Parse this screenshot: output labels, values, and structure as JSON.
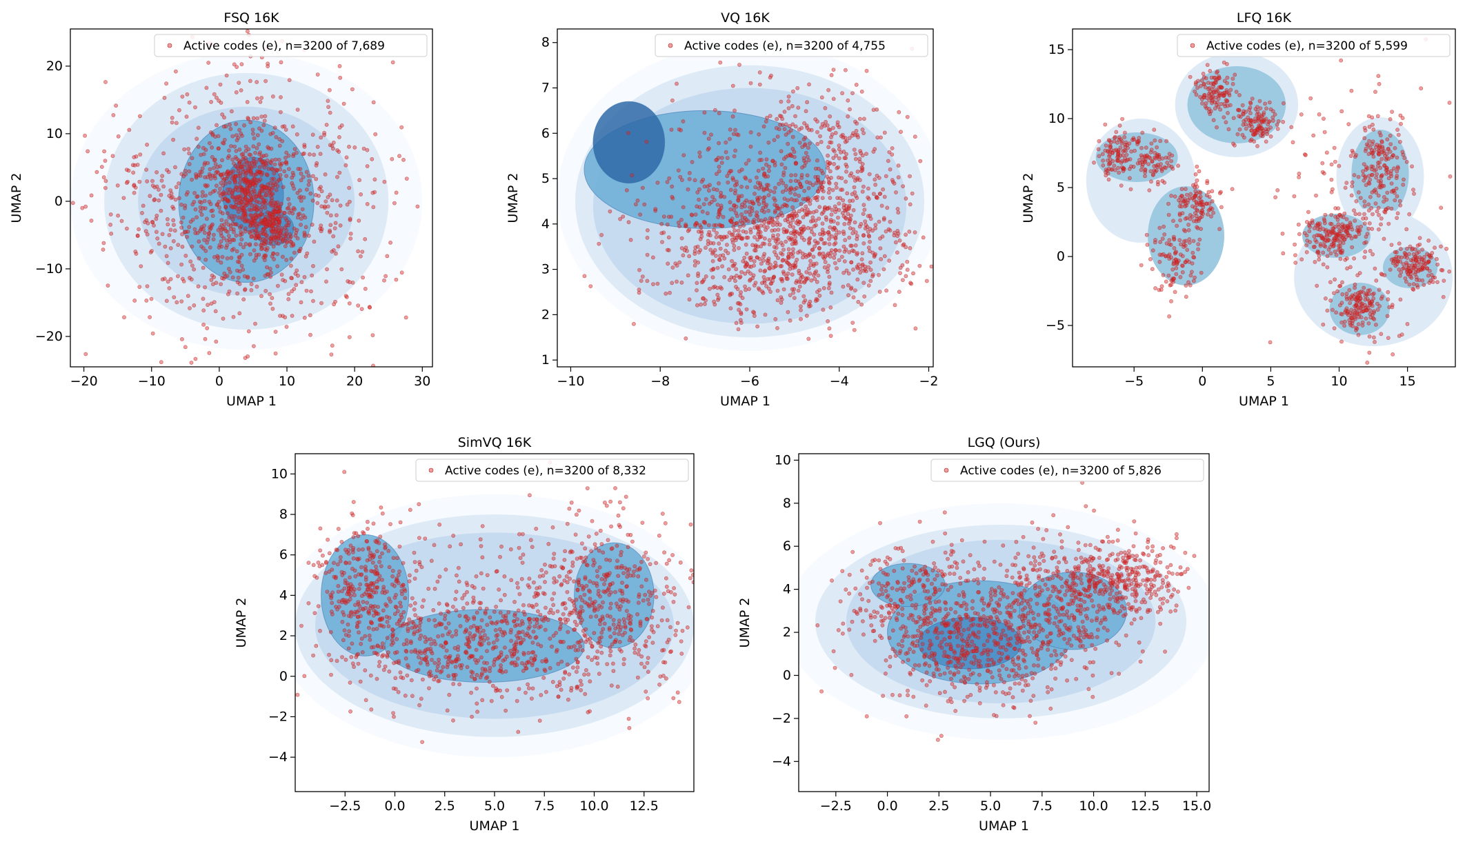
{
  "figure": {
    "description_free": true
  },
  "colors": {
    "point_fill": "#d62728",
    "point_edge": "#b71c1c",
    "kde_levels": [
      "#f7fbff",
      "#deebf7",
      "#c6dbef",
      "#9ecae1",
      "#6baed6",
      "#4a8cc4",
      "#2f6aa8"
    ],
    "axis": "#000000",
    "legend_border": "#cccccc"
  },
  "chart_data": [
    {
      "id": "fsq",
      "type": "scatter",
      "title": "FSQ 16K",
      "xlabel": "UMAP 1",
      "ylabel": "UMAP 2",
      "xlim": [
        -22,
        31.5
      ],
      "ylim": [
        -24.5,
        25.5
      ],
      "xticks": [
        -20,
        -10,
        0,
        10,
        20,
        30
      ],
      "yticks": [
        -20,
        -10,
        0,
        10,
        20
      ],
      "xtick_labels": [
        "−20",
        "−10",
        "0",
        "10",
        "20",
        "30"
      ],
      "ytick_labels": [
        "−20",
        "−10",
        "0",
        "10",
        "20"
      ],
      "legend": "Active codes (e), n=3200 of 7,689",
      "n_points": 3200,
      "active_codes": 7689,
      "point_density": [
        {
          "x": 4.5,
          "y": 1.5,
          "sx": 2.5,
          "sy": 3.0,
          "w": 0.18
        },
        {
          "x": 8.0,
          "y": -4.0,
          "sx": 2.0,
          "sy": 1.8,
          "w": 0.1
        },
        {
          "x": 4.0,
          "y": 0.0,
          "sx": 8.0,
          "sy": 8.0,
          "w": 0.4
        },
        {
          "x": 4.0,
          "y": 0.0,
          "sx": 12.0,
          "sy": 11.0,
          "w": 0.32
        }
      ],
      "kde_regions": [
        {
          "x": 4.0,
          "y": 0.0,
          "rx": 26,
          "ry": 22,
          "level": 0
        },
        {
          "x": 4.0,
          "y": 0.0,
          "rx": 21,
          "ry": 19,
          "level": 1
        },
        {
          "x": 4.0,
          "y": 0.0,
          "rx": 16,
          "ry": 14,
          "level": 2
        },
        {
          "x": 4.0,
          "y": 0.0,
          "rx": 10,
          "ry": 12,
          "level": 4
        },
        {
          "x": 5.0,
          "y": 1.0,
          "rx": 4.5,
          "ry": 5.5,
          "level": 5
        },
        {
          "x": 8.0,
          "y": -4.0,
          "rx": 3.0,
          "ry": 2.5,
          "level": 5
        }
      ]
    },
    {
      "id": "vq",
      "type": "scatter",
      "title": "VQ 16K",
      "xlabel": "UMAP 1",
      "ylabel": "UMAP 2",
      "xlim": [
        -10.3,
        -1.9
      ],
      "ylim": [
        0.85,
        8.3
      ],
      "xticks": [
        -10,
        -8,
        -6,
        -4,
        -2
      ],
      "yticks": [
        1,
        2,
        3,
        4,
        5,
        6,
        7,
        8
      ],
      "xtick_labels": [
        "−10",
        "−8",
        "−6",
        "−4",
        "−2"
      ],
      "ytick_labels": [
        "1",
        "2",
        "3",
        "4",
        "5",
        "6",
        "7",
        "8"
      ],
      "legend": "Active codes (e), n=3200 of 4,755",
      "n_points": 3200,
      "active_codes": 4755,
      "point_density": [
        {
          "x": -5.0,
          "y": 3.5,
          "sx": 1.3,
          "sy": 0.8,
          "w": 0.45
        },
        {
          "x": -4.5,
          "y": 5.0,
          "sx": 1.0,
          "sy": 1.1,
          "w": 0.3
        },
        {
          "x": -6.5,
          "y": 4.2,
          "sx": 1.1,
          "sy": 1.0,
          "w": 0.25
        }
      ],
      "kde_regions": [
        {
          "x": -6.0,
          "y": 4.6,
          "rx": 4.3,
          "ry": 3.4,
          "level": 0
        },
        {
          "x": -6.0,
          "y": 4.5,
          "rx": 3.9,
          "ry": 3.0,
          "level": 1
        },
        {
          "x": -6.0,
          "y": 4.4,
          "rx": 3.5,
          "ry": 2.6,
          "level": 2
        },
        {
          "x": -7.0,
          "y": 5.2,
          "rx": 2.7,
          "ry": 1.3,
          "level": 4
        },
        {
          "x": -8.7,
          "y": 5.8,
          "rx": 0.8,
          "ry": 0.9,
          "level": 6
        }
      ]
    },
    {
      "id": "lfq",
      "type": "scatter",
      "title": "LFQ 16K",
      "xlabel": "UMAP 1",
      "ylabel": "UMAP 2",
      "xlim": [
        -9.5,
        18.5
      ],
      "ylim": [
        -8.0,
        16.5
      ],
      "xticks": [
        -5,
        0,
        5,
        10,
        15
      ],
      "yticks": [
        -5,
        0,
        5,
        10,
        15
      ],
      "xtick_labels": [
        "−5",
        "0",
        "5",
        "10",
        "15"
      ],
      "ytick_labels": [
        "−5",
        "0",
        "5",
        "10",
        "15"
      ],
      "legend": "Active codes (e), n=3200 of 5,599",
      "n_points": 3200,
      "active_codes": 5599,
      "point_density": [
        {
          "x": 1.0,
          "y": 12.0,
          "sx": 0.9,
          "sy": 0.9,
          "w": 0.09
        },
        {
          "x": 4.0,
          "y": 9.7,
          "sx": 0.9,
          "sy": 0.7,
          "w": 0.09
        },
        {
          "x": -6.0,
          "y": 7.5,
          "sx": 0.8,
          "sy": 1.0,
          "w": 0.08
        },
        {
          "x": -3.5,
          "y": 6.8,
          "sx": 0.7,
          "sy": 0.8,
          "w": 0.06
        },
        {
          "x": -0.5,
          "y": 3.8,
          "sx": 0.9,
          "sy": 0.9,
          "w": 0.07
        },
        {
          "x": -2.0,
          "y": 0.0,
          "sx": 0.9,
          "sy": 1.2,
          "w": 0.08
        },
        {
          "x": 13.0,
          "y": 6.5,
          "sx": 0.9,
          "sy": 1.8,
          "w": 0.09
        },
        {
          "x": 9.5,
          "y": 1.5,
          "sx": 1.0,
          "sy": 0.8,
          "w": 0.11
        },
        {
          "x": 15.5,
          "y": -0.8,
          "sx": 1.0,
          "sy": 0.8,
          "w": 0.1
        },
        {
          "x": 11.5,
          "y": -3.8,
          "sx": 0.9,
          "sy": 1.0,
          "w": 0.1
        },
        {
          "x": 12.0,
          "y": 3.0,
          "sx": 3.0,
          "sy": 5.0,
          "w": 0.13
        }
      ],
      "kde_regions": [
        {
          "x": 2.5,
          "y": 11.0,
          "rx": 4.5,
          "ry": 3.8,
          "level": 1
        },
        {
          "x": 2.5,
          "y": 11.0,
          "rx": 3.6,
          "ry": 2.8,
          "level": 3
        },
        {
          "x": -4.5,
          "y": 5.5,
          "rx": 4.0,
          "ry": 4.5,
          "level": 1
        },
        {
          "x": -4.8,
          "y": 7.2,
          "rx": 3.0,
          "ry": 1.8,
          "level": 3
        },
        {
          "x": -1.2,
          "y": 1.5,
          "rx": 2.8,
          "ry": 3.6,
          "level": 3
        },
        {
          "x": 13.0,
          "y": 5.8,
          "rx": 3.2,
          "ry": 4.3,
          "level": 1
        },
        {
          "x": 13.0,
          "y": 6.0,
          "rx": 2.1,
          "ry": 3.2,
          "level": 3
        },
        {
          "x": 12.5,
          "y": -1.5,
          "rx": 5.8,
          "ry": 5.0,
          "level": 1
        },
        {
          "x": 9.8,
          "y": 1.5,
          "rx": 2.5,
          "ry": 1.6,
          "level": 3
        },
        {
          "x": 15.2,
          "y": -0.8,
          "rx": 2.0,
          "ry": 1.5,
          "level": 3
        },
        {
          "x": 11.5,
          "y": -3.8,
          "rx": 2.2,
          "ry": 1.9,
          "level": 3
        }
      ]
    },
    {
      "id": "simvq",
      "type": "scatter",
      "title": "SimVQ 16K",
      "xlabel": "UMAP 1",
      "ylabel": "UMAP 2",
      "xlim": [
        -5.0,
        15.0
      ],
      "ylim": [
        -5.7,
        11.0
      ],
      "xticks": [
        -2.5,
        0.0,
        2.5,
        5.0,
        7.5,
        10.0,
        12.5
      ],
      "yticks": [
        -4,
        -2,
        0,
        2,
        4,
        6,
        8,
        10
      ],
      "xtick_labels": [
        "−2.5",
        "0.0",
        "2.5",
        "5.0",
        "7.5",
        "10.0",
        "12.5"
      ],
      "ytick_labels": [
        "−4",
        "−2",
        "0",
        "2",
        "4",
        "6",
        "8",
        "10"
      ],
      "legend": "Active codes (e), n=3200 of 8,332",
      "n_points": 3200,
      "active_codes": 8332,
      "point_density": [
        {
          "x": -1.5,
          "y": 4.5,
          "sx": 1.2,
          "sy": 1.6,
          "w": 0.2
        },
        {
          "x": 4.0,
          "y": 1.5,
          "sx": 3.2,
          "sy": 1.3,
          "w": 0.35
        },
        {
          "x": 10.5,
          "y": 4.0,
          "sx": 2.0,
          "sy": 2.0,
          "w": 0.25
        },
        {
          "x": 5.5,
          "y": 3.0,
          "sx": 5.0,
          "sy": 2.5,
          "w": 0.2
        }
      ],
      "kde_regions": [
        {
          "x": 5.0,
          "y": 2.5,
          "rx": 11,
          "ry": 6.5,
          "level": 0
        },
        {
          "x": 5.0,
          "y": 2.5,
          "rx": 10,
          "ry": 5.5,
          "level": 1
        },
        {
          "x": 5.0,
          "y": 2.5,
          "rx": 9,
          "ry": 4.6,
          "level": 2
        },
        {
          "x": -1.5,
          "y": 4.0,
          "rx": 2.2,
          "ry": 3.0,
          "level": 4
        },
        {
          "x": 4.5,
          "y": 1.5,
          "rx": 5.0,
          "ry": 1.8,
          "level": 4
        },
        {
          "x": 11.0,
          "y": 4.0,
          "rx": 2.0,
          "ry": 2.6,
          "level": 4
        }
      ]
    },
    {
      "id": "lgq",
      "type": "scatter",
      "title": "LGQ (Ours)",
      "xlabel": "UMAP 1",
      "ylabel": "UMAP 2",
      "xlim": [
        -4.3,
        15.6
      ],
      "ylim": [
        -5.4,
        10.3
      ],
      "xticks": [
        -2.5,
        0.0,
        2.5,
        5.0,
        7.5,
        10.0,
        12.5,
        15.0
      ],
      "yticks": [
        -4,
        -2,
        0,
        2,
        4,
        6,
        8,
        10
      ],
      "xtick_labels": [
        "−2.5",
        "0.0",
        "2.5",
        "5.0",
        "7.5",
        "10.0",
        "12.5",
        "15.0"
      ],
      "ytick_labels": [
        "−4",
        "−2",
        "0",
        "2",
        "4",
        "6",
        "8",
        "10"
      ],
      "legend": "Active codes (e), n=3200 of 5,826",
      "n_points": 3200,
      "active_codes": 5826,
      "point_density": [
        {
          "x": 4.0,
          "y": 1.5,
          "sx": 2.5,
          "sy": 1.5,
          "w": 0.4
        },
        {
          "x": 8.5,
          "y": 3.5,
          "sx": 2.0,
          "sy": 1.5,
          "w": 0.25
        },
        {
          "x": 1.0,
          "y": 4.0,
          "sx": 1.8,
          "sy": 1.2,
          "w": 0.15
        },
        {
          "x": 11.5,
          "y": 4.5,
          "sx": 1.5,
          "sy": 1.0,
          "w": 0.2
        }
      ],
      "kde_regions": [
        {
          "x": 5.5,
          "y": 2.5,
          "rx": 10.5,
          "ry": 5.5,
          "level": 0
        },
        {
          "x": 5.5,
          "y": 2.5,
          "rx": 9.0,
          "ry": 4.5,
          "level": 1
        },
        {
          "x": 5.5,
          "y": 2.5,
          "rx": 7.5,
          "ry": 3.8,
          "level": 2
        },
        {
          "x": 4.5,
          "y": 2.0,
          "rx": 4.5,
          "ry": 2.4,
          "level": 4
        },
        {
          "x": 9.0,
          "y": 3.0,
          "rx": 2.6,
          "ry": 1.8,
          "level": 4
        },
        {
          "x": 1.0,
          "y": 4.2,
          "rx": 1.8,
          "ry": 1.0,
          "level": 4
        },
        {
          "x": 4.0,
          "y": 1.5,
          "rx": 2.5,
          "ry": 1.2,
          "level": 5
        }
      ]
    }
  ]
}
